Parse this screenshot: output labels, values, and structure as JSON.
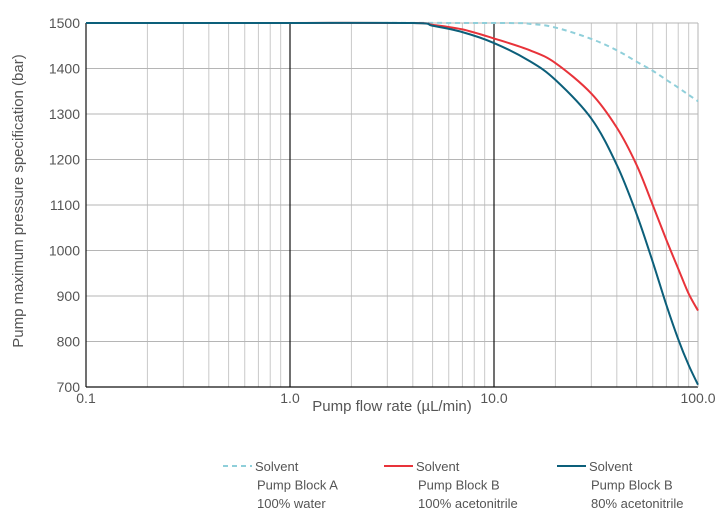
{
  "chart_data": {
    "type": "line",
    "xscale": "log",
    "xlim": [
      0.1,
      100
    ],
    "ylim": [
      700,
      1500
    ],
    "xlabel": "Pump flow rate (µL/min)",
    "ylabel": "Pump maximum pressure specification (bar)",
    "grid": true,
    "legend_position": "bottom",
    "x_ticks": [
      {
        "value": 0.1,
        "label": "0.1"
      },
      {
        "value": 1,
        "label": "1.0"
      },
      {
        "value": 10,
        "label": "10.0"
      },
      {
        "value": 100,
        "label": "100.0"
      }
    ],
    "y_ticks": [
      {
        "value": 1500,
        "label": "1500"
      },
      {
        "value": 1400,
        "label": "1400"
      },
      {
        "value": 1300,
        "label": "1300"
      },
      {
        "value": 1200,
        "label": "1200"
      },
      {
        "value": 1100,
        "label": "1100"
      },
      {
        "value": 1000,
        "label": "1000"
      },
      {
        "value": 900,
        "label": "900"
      },
      {
        "value": 800,
        "label": "800"
      },
      {
        "value": 700,
        "label": "700"
      }
    ],
    "series": [
      {
        "legend": [
          "Solvent",
          "Pump Block A",
          "100% water"
        ],
        "color": "#8fcfda",
        "dash": true,
        "points": [
          [
            0.1,
            1500
          ],
          [
            0.5,
            1500
          ],
          [
            10,
            1500
          ],
          [
            15,
            1498
          ],
          [
            20,
            1490
          ],
          [
            30,
            1465
          ],
          [
            40,
            1440
          ],
          [
            50,
            1415
          ],
          [
            60,
            1395
          ],
          [
            70,
            1375
          ],
          [
            80,
            1358
          ],
          [
            90,
            1342
          ],
          [
            100,
            1328
          ]
        ]
      },
      {
        "legend": [
          "Solvent",
          "Pump Block B",
          "100% acetonitrile"
        ],
        "color": "#e8333a",
        "dash": false,
        "points": [
          [
            0.1,
            1500
          ],
          [
            0.4,
            1500
          ],
          [
            1,
            1500
          ],
          [
            4,
            1500
          ],
          [
            5,
            1496
          ],
          [
            7,
            1486
          ],
          [
            10,
            1466
          ],
          [
            15,
            1440
          ],
          [
            20,
            1412
          ],
          [
            30,
            1345
          ],
          [
            40,
            1270
          ],
          [
            50,
            1188
          ],
          [
            60,
            1100
          ],
          [
            70,
            1023
          ],
          [
            80,
            960
          ],
          [
            90,
            905
          ],
          [
            100,
            868
          ]
        ]
      },
      {
        "legend": [
          "Solvent",
          "Pump Block B",
          "80% acetonitrile"
        ],
        "color": "#0c5f7a",
        "dash": false,
        "points": [
          [
            0.1,
            1500
          ],
          [
            0.4,
            1500
          ],
          [
            1,
            1500
          ],
          [
            4,
            1500
          ],
          [
            5,
            1494
          ],
          [
            7,
            1480
          ],
          [
            10,
            1456
          ],
          [
            15,
            1416
          ],
          [
            20,
            1375
          ],
          [
            30,
            1290
          ],
          [
            40,
            1188
          ],
          [
            50,
            1080
          ],
          [
            60,
            975
          ],
          [
            70,
            880
          ],
          [
            80,
            805
          ],
          [
            90,
            748
          ],
          [
            100,
            705
          ]
        ]
      }
    ]
  }
}
